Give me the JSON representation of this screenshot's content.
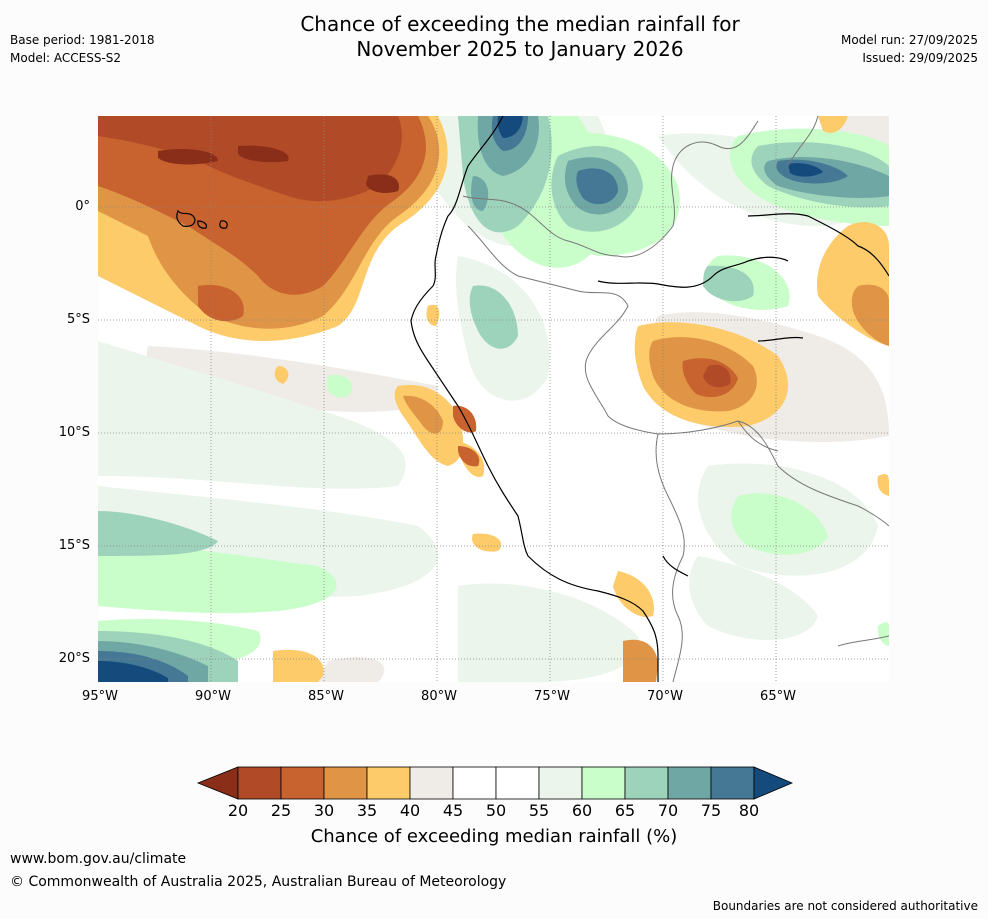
{
  "header": {
    "base_period": "Base period: 1981-2018",
    "model": "Model: ACCESS-S2",
    "model_run": "Model run: 27/09/2025",
    "issued": "Issued: 29/09/2025",
    "title_line1": "Chance of exceeding the median rainfall for",
    "title_line2": "November 2025 to January 2026"
  },
  "map": {
    "lat_labels": [
      "0°",
      "5°S",
      "10°S",
      "15°S",
      "20°S"
    ],
    "lon_labels": [
      "95°W",
      "90°W",
      "85°W",
      "80°W",
      "75°W",
      "70°W",
      "65°W"
    ]
  },
  "colorbar": {
    "ticks": [
      "20",
      "25",
      "30",
      "35",
      "40",
      "45",
      "50",
      "55",
      "60",
      "65",
      "70",
      "75",
      "80"
    ],
    "colors": {
      "below_20": "#8a2e1a",
      "c20_25": "#b14b27",
      "c25_30": "#c8622f",
      "c30_35": "#df9446",
      "c35_40": "#fdcb6a",
      "c40_45": "#efebe7",
      "c45_50": "#ffffff",
      "c50_55": "#ffffff",
      "c55_60": "#ebf5eb",
      "c60_65": "#c9fdca",
      "c65_70": "#9ed3bb",
      "c70_75": "#6fa7a5",
      "c75_80": "#447895",
      "above_80": "#154b7c"
    },
    "label": "Chance of exceeding median rainfall (%)"
  },
  "footer": {
    "url": "www.bom.gov.au/climate",
    "copyright": "© Commonwealth of Australia 2025, Australian Bureau of Meteorology",
    "disclaimer": "Boundaries are not considered authoritative"
  }
}
